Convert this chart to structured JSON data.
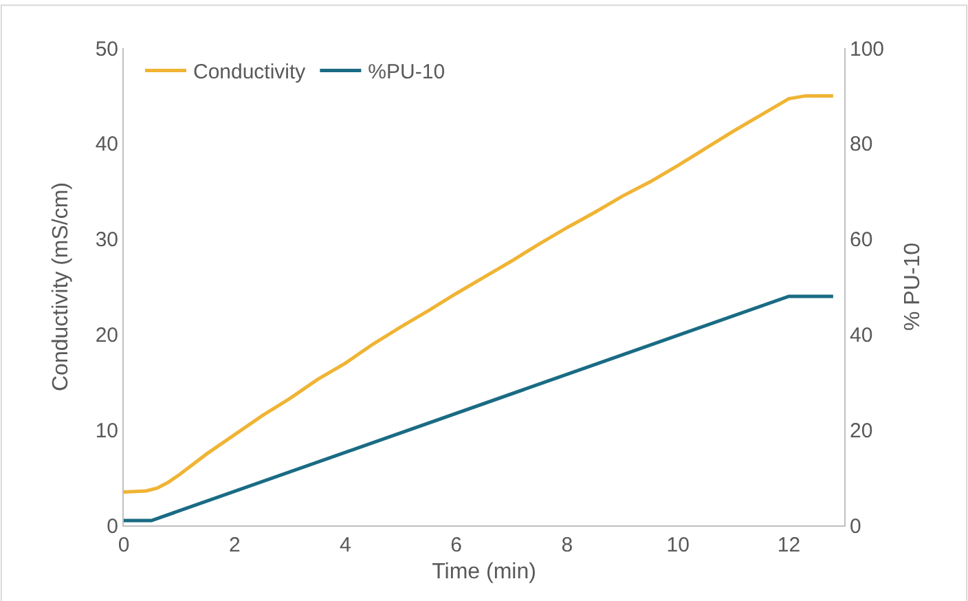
{
  "chart_data": {
    "type": "line",
    "xlabel": "Time (min)",
    "ylabel": "Conductivity (mS/cm)",
    "y2label": "% PU-10",
    "xlim": [
      0,
      13
    ],
    "xticks": [
      0,
      2,
      4,
      6,
      8,
      10,
      12
    ],
    "ylim": [
      0,
      50
    ],
    "yticks": [
      0,
      10,
      20,
      30,
      40,
      50
    ],
    "y2lim": [
      0,
      100
    ],
    "y2ticks": [
      0,
      20,
      40,
      60,
      80,
      100
    ],
    "legend": "top left",
    "marker": "none",
    "line_style": "solid",
    "series": [
      {
        "name": "Conductivity",
        "color": "#f0b434",
        "x": [
          0,
          0.4,
          0.6,
          0.8,
          1,
          1.5,
          2,
          2.5,
          3,
          3.5,
          4,
          4.5,
          5,
          5.5,
          6,
          6.5,
          7,
          7.5,
          8,
          8.5,
          9,
          9.5,
          10,
          10.5,
          11,
          11.5,
          12,
          12.3,
          12.8
        ],
        "values": [
          3.5,
          3.6,
          3.9,
          4.5,
          5.3,
          7.5,
          9.5,
          11.5,
          13.3,
          15.3,
          17.0,
          19.0,
          20.8,
          22.5,
          24.3,
          26.0,
          27.7,
          29.5,
          31.2,
          32.8,
          34.5,
          36.0,
          37.7,
          39.5,
          41.3,
          43.0,
          44.7,
          45.0,
          45.0
        ]
      },
      {
        "name": "%PU-10",
        "color": "#1a6b84",
        "axis": "y2",
        "x": [
          0,
          0.5,
          12,
          12.8
        ],
        "values": [
          1,
          1,
          48,
          48
        ]
      }
    ]
  }
}
